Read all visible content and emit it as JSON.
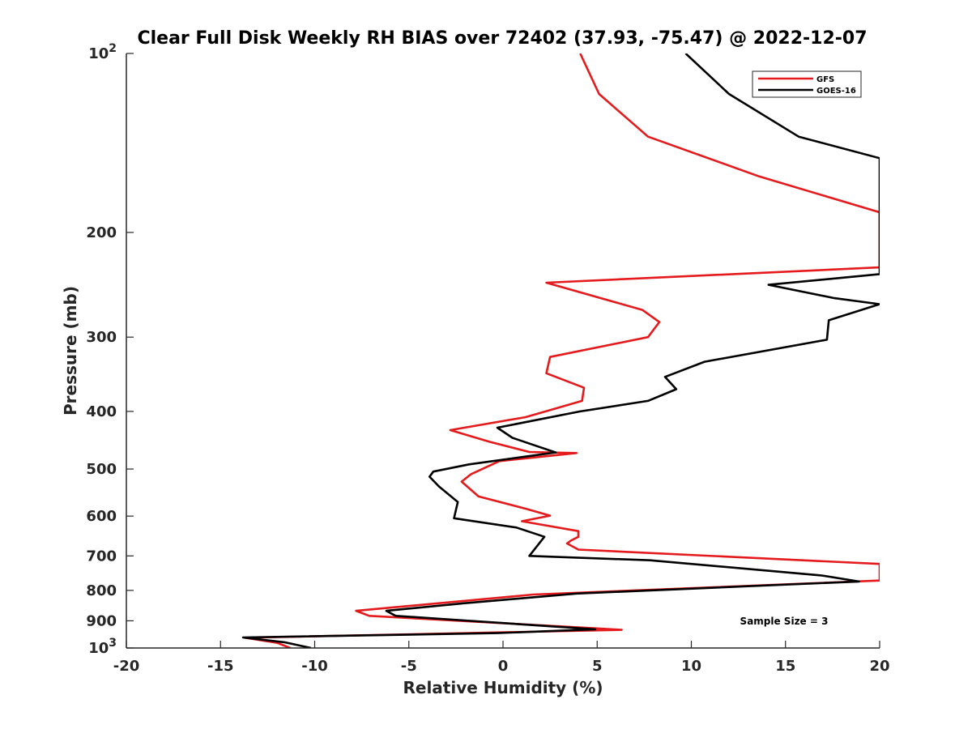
{
  "chart_data": {
    "type": "line",
    "title": "Clear Full Disk Weekly RH BIAS over 72402 (37.93, -75.47) @ 2022-12-07",
    "xlabel": "Relative Humidity (%)",
    "ylabel": "Pressure (mb)",
    "xlim": [
      -20,
      20
    ],
    "ylim": [
      100,
      1000
    ],
    "y_scale": "log",
    "y_reversed": true,
    "grid": false,
    "legend_position": "top-right",
    "x_ticks": [
      "-20",
      "-15",
      "-10",
      "-5",
      "0",
      "5",
      "10",
      "15",
      "20"
    ],
    "y_ticks": [
      {
        "value": 100,
        "base": "10",
        "exp": "2"
      },
      {
        "value": 200,
        "label": "200"
      },
      {
        "value": 300,
        "label": "300"
      },
      {
        "value": 400,
        "label": "400"
      },
      {
        "value": 500,
        "label": "500"
      },
      {
        "value": 600,
        "label": "600"
      },
      {
        "value": 700,
        "label": "700"
      },
      {
        "value": 800,
        "label": "800"
      },
      {
        "value": 900,
        "label": "900"
      },
      {
        "value": 1000,
        "base": "10",
        "exp": "3"
      }
    ],
    "annotation": "Sample Size = 3",
    "series": [
      {
        "name": "GFS",
        "color": "#e41a1c",
        "points": [
          [
            4.1,
            100
          ],
          [
            5.1,
            117
          ],
          [
            7.7,
            138
          ],
          [
            13.6,
            161
          ],
          [
            20,
            185
          ],
          [
            20,
            229
          ],
          [
            2.3,
            243
          ],
          [
            7.4,
            270
          ],
          [
            8.3,
            283
          ],
          [
            7.7,
            300
          ],
          [
            2.5,
            324
          ],
          [
            2.3,
            345
          ],
          [
            4.3,
            365
          ],
          [
            4.2,
            384
          ],
          [
            1.2,
            409
          ],
          [
            -2.8,
            430
          ],
          [
            -0.7,
            450
          ],
          [
            1.4,
            468
          ],
          [
            3.9,
            470
          ],
          [
            -0.2,
            485
          ],
          [
            -1.7,
            510
          ],
          [
            -2.2,
            525
          ],
          [
            -1.3,
            556
          ],
          [
            1.2,
            583
          ],
          [
            2.5,
            599
          ],
          [
            1.0,
            612
          ],
          [
            4.0,
            636
          ],
          [
            4.0,
            650
          ],
          [
            3.6,
            660
          ],
          [
            3.4,
            667
          ],
          [
            4.0,
            683
          ],
          [
            20,
            722
          ],
          [
            20,
            770
          ],
          [
            1.6,
            813
          ],
          [
            -7.8,
            866
          ],
          [
            -7.1,
            883
          ],
          [
            4.8,
            926
          ],
          [
            6.3,
            932
          ],
          [
            -13.7,
            961
          ],
          [
            -12.0,
            980
          ],
          [
            -11.3,
            1000
          ]
        ]
      },
      {
        "name": "GOES-16",
        "color": "#000000",
        "points": [
          [
            9.7,
            100
          ],
          [
            12.0,
            117
          ],
          [
            15.7,
            138
          ],
          [
            20,
            150
          ],
          [
            20,
            235
          ],
          [
            14.1,
            245
          ],
          [
            17.6,
            258
          ],
          [
            20,
            264
          ],
          [
            17.3,
            281
          ],
          [
            17.2,
            303
          ],
          [
            10.7,
            330
          ],
          [
            8.6,
            350
          ],
          [
            9.2,
            367
          ],
          [
            7.7,
            384
          ],
          [
            4.1,
            400
          ],
          [
            -0.3,
            426
          ],
          [
            0.5,
            443
          ],
          [
            2.8,
            469
          ],
          [
            -1.8,
            491
          ],
          [
            -3.7,
            505
          ],
          [
            -3.9,
            515
          ],
          [
            -3.4,
            535
          ],
          [
            -2.4,
            568
          ],
          [
            -2.6,
            605
          ],
          [
            0.7,
            627
          ],
          [
            2.2,
            650
          ],
          [
            1.4,
            700
          ],
          [
            7.8,
            712
          ],
          [
            16.9,
            755
          ],
          [
            18.9,
            773
          ],
          [
            3.9,
            810
          ],
          [
            -2.1,
            841
          ],
          [
            -6.2,
            866
          ],
          [
            -5.7,
            883
          ],
          [
            4.9,
            930
          ],
          [
            -0.3,
            944
          ],
          [
            -13.8,
            960
          ],
          [
            -11.6,
            978
          ],
          [
            -10.2,
            1000
          ]
        ]
      }
    ]
  }
}
